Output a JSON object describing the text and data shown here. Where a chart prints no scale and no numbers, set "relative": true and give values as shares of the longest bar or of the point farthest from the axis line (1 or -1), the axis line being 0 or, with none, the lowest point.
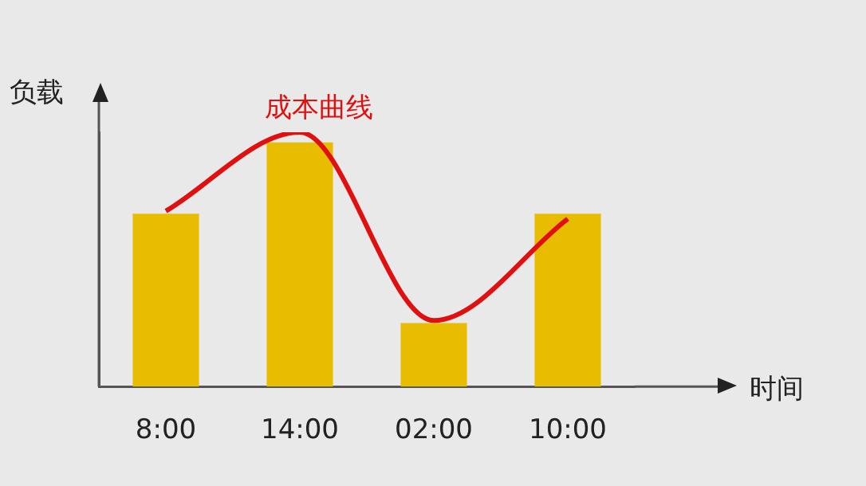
{
  "chart_data": {
    "type": "bar",
    "xlabel": "时间",
    "ylabel": "负载",
    "relative": true,
    "categories": [
      "8:00",
      "14:00",
      "02:00",
      "10:00"
    ],
    "legend": false,
    "grid": false,
    "series": [
      {
        "color": "#e8bc00",
        "values": [
          0.68,
          0.96,
          0.25,
          0.68
        ]
      },
      {
        "type": "line",
        "name": "成本曲线",
        "color": "#e01010",
        "values": [
          0.69,
          1,
          0.26,
          0.66
        ]
      }
    ]
  }
}
